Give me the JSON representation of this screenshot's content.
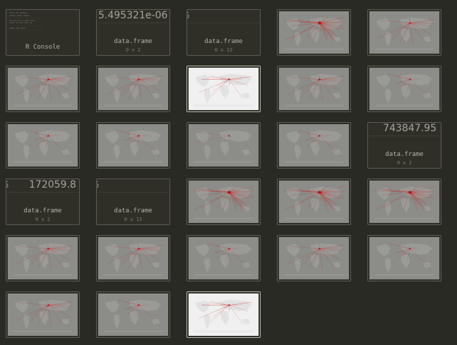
{
  "tiles": [
    {
      "kind": "console",
      "label": "R Console"
    },
    {
      "kind": "dataframe",
      "value": "5.495321e-06",
      "type": "data.frame",
      "dims": "0 x 2"
    },
    {
      "kind": "dataframe",
      "value": "",
      "type": "data.frame",
      "dims": "0 x 13",
      "cut": "5"
    },
    {
      "kind": "plot",
      "style": "dense"
    },
    {
      "kind": "plot",
      "style": "medium"
    },
    {
      "kind": "plot",
      "style": "medium"
    },
    {
      "kind": "plot",
      "style": "medium"
    },
    {
      "kind": "plot",
      "style": "light",
      "selected": true
    },
    {
      "kind": "plot",
      "style": "medium"
    },
    {
      "kind": "plot",
      "style": "sparse"
    },
    {
      "kind": "plot",
      "style": "sparse"
    },
    {
      "kind": "plot",
      "style": "sparse"
    },
    {
      "kind": "plot",
      "style": "faint"
    },
    {
      "kind": "plot",
      "style": "sparse"
    },
    {
      "kind": "dataframe",
      "value": "743847.95",
      "type": "data.frame",
      "dims": "0 x 2"
    },
    {
      "kind": "dataframe",
      "value": "172059.8",
      "type": "data.frame",
      "dims": "0 x 2",
      "cut": "5"
    },
    {
      "kind": "dataframe",
      "value": "",
      "type": "data.frame",
      "dims": "0 x 13",
      "cut": "5"
    },
    {
      "kind": "plot",
      "style": "dense"
    },
    {
      "kind": "plot",
      "style": "dense"
    },
    {
      "kind": "plot",
      "style": "dense"
    },
    {
      "kind": "plot",
      "style": "medium"
    },
    {
      "kind": "plot",
      "style": "medium"
    },
    {
      "kind": "plot",
      "style": "sparse"
    },
    {
      "kind": "plot",
      "style": "medium"
    },
    {
      "kind": "plot",
      "style": "sparse"
    },
    {
      "kind": "plot",
      "style": "medium"
    },
    {
      "kind": "plot",
      "style": "sparse"
    },
    {
      "kind": "plot",
      "style": "light",
      "selected": true
    }
  ]
}
